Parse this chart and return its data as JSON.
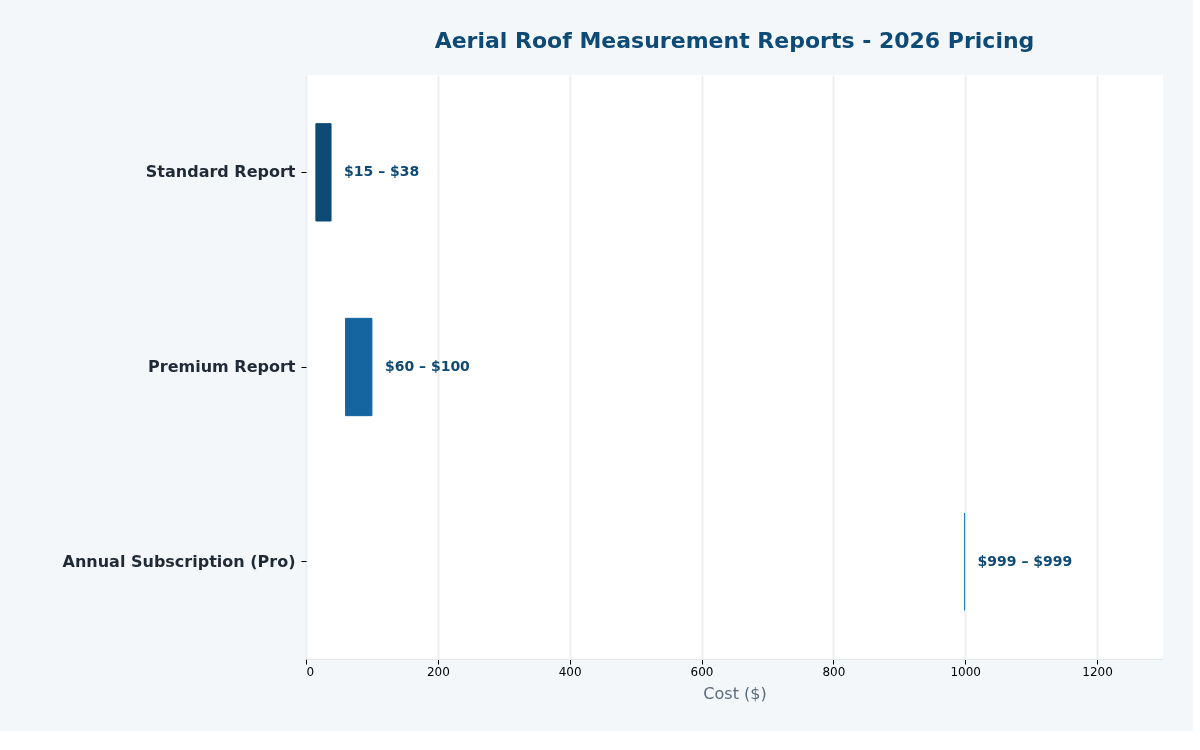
{
  "chart_data": {
    "type": "bar",
    "orientation": "horizontal",
    "title": "Aerial Roof Measurement Reports - 2026 Pricing",
    "xlabel": "Cost ($)",
    "categories": [
      "Standard Report",
      "Premium Report",
      "Annual Subscription (Pro)"
    ],
    "base": [
      15,
      60,
      999
    ],
    "values": [
      23,
      40,
      0
    ],
    "colors": [
      "#0d4a75",
      "#1565a0",
      "#1e7fc4"
    ],
    "annotations": [
      {
        "text": "$15 – $38",
        "x": 38,
        "y": "Standard Report"
      },
      {
        "text": "$60 – $100",
        "x": 100,
        "y": "Premium Report"
      },
      {
        "text": "$999 – $999",
        "x": 999,
        "y": "Annual Subscription (Pro)"
      }
    ],
    "xlim": [
      0,
      1300
    ],
    "xticks": [
      0,
      200,
      400,
      600,
      800,
      1000,
      1200
    ],
    "grid": "x"
  }
}
